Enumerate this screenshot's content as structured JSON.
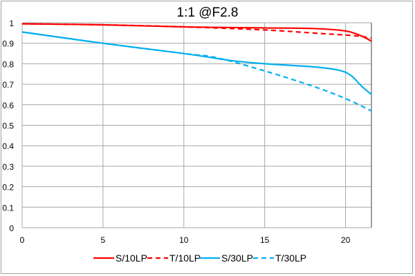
{
  "chart_data": {
    "type": "line",
    "title": "1:1  @F2.8",
    "xlabel": "",
    "ylabel": "",
    "xlim": [
      0,
      21.6
    ],
    "ylim": [
      0,
      1
    ],
    "xticks": [
      0,
      5,
      10,
      15,
      20
    ],
    "yticks": [
      0,
      0.1,
      0.2,
      0.3,
      0.4,
      0.5,
      0.6,
      0.7,
      0.8,
      0.9,
      1
    ],
    "ytick_labels": [
      "0",
      "0.1",
      "0.2",
      "0.3",
      "0.4",
      "0.5",
      "0.6",
      "0.7",
      "0.8",
      "0.9",
      "1"
    ],
    "xtick_labels": [
      "0",
      "5",
      "10",
      "15",
      "20"
    ],
    "grid": true,
    "legend": "bottom",
    "series": [
      {
        "name": "S/10LP",
        "color": "#ff0000",
        "dash": false,
        "x": [
          0,
          5,
          10,
          15,
          18,
          20,
          21,
          21.6
        ],
        "y": [
          0.995,
          0.99,
          0.98,
          0.975,
          0.972,
          0.96,
          0.935,
          0.91
        ]
      },
      {
        "name": "T/10LP",
        "color": "#ff0000",
        "dash": true,
        "x": [
          0,
          5,
          10,
          15,
          18,
          20,
          21,
          21.6
        ],
        "y": [
          0.995,
          0.99,
          0.98,
          0.965,
          0.95,
          0.94,
          0.933,
          0.925
        ]
      },
      {
        "name": "S/30LP",
        "color": "#00b0f0",
        "dash": false,
        "x": [
          0,
          5,
          10,
          13,
          15,
          18,
          19.5,
          20.3,
          21,
          21.6
        ],
        "y": [
          0.955,
          0.9,
          0.85,
          0.815,
          0.8,
          0.785,
          0.77,
          0.745,
          0.69,
          0.65
        ]
      },
      {
        "name": "T/30LP",
        "color": "#00b0f0",
        "dash": true,
        "x": [
          0,
          5,
          10,
          12,
          15,
          18,
          20,
          21.6
        ],
        "y": [
          0.955,
          0.9,
          0.85,
          0.83,
          0.765,
          0.69,
          0.63,
          0.57
        ]
      }
    ]
  }
}
